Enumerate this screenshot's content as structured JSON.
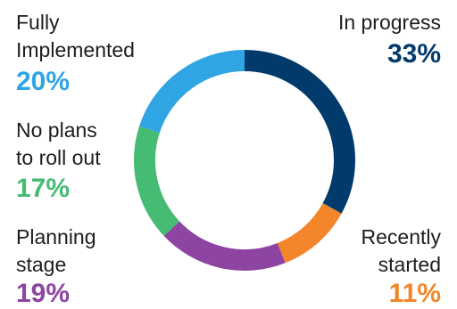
{
  "chart_data": {
    "type": "pie",
    "variant": "donut",
    "title": "",
    "segments": [
      {
        "label": "In progress",
        "value": 33,
        "display": "33%",
        "color": "#013a6b"
      },
      {
        "label": "Recently\nstarted",
        "value": 11,
        "display": "11%",
        "color": "#f3862a"
      },
      {
        "label": "Planning\nstage",
        "value": 19,
        "display": "19%",
        "color": "#8e44a3"
      },
      {
        "label": "No plans\nto roll out",
        "value": 17,
        "display": "17%",
        "color": "#46bb74"
      },
      {
        "label": "Fully\nImplemented",
        "value": 20,
        "display": "20%",
        "color": "#2fa5e3"
      }
    ],
    "start_angle_deg": 0,
    "direction": "clockwise"
  }
}
